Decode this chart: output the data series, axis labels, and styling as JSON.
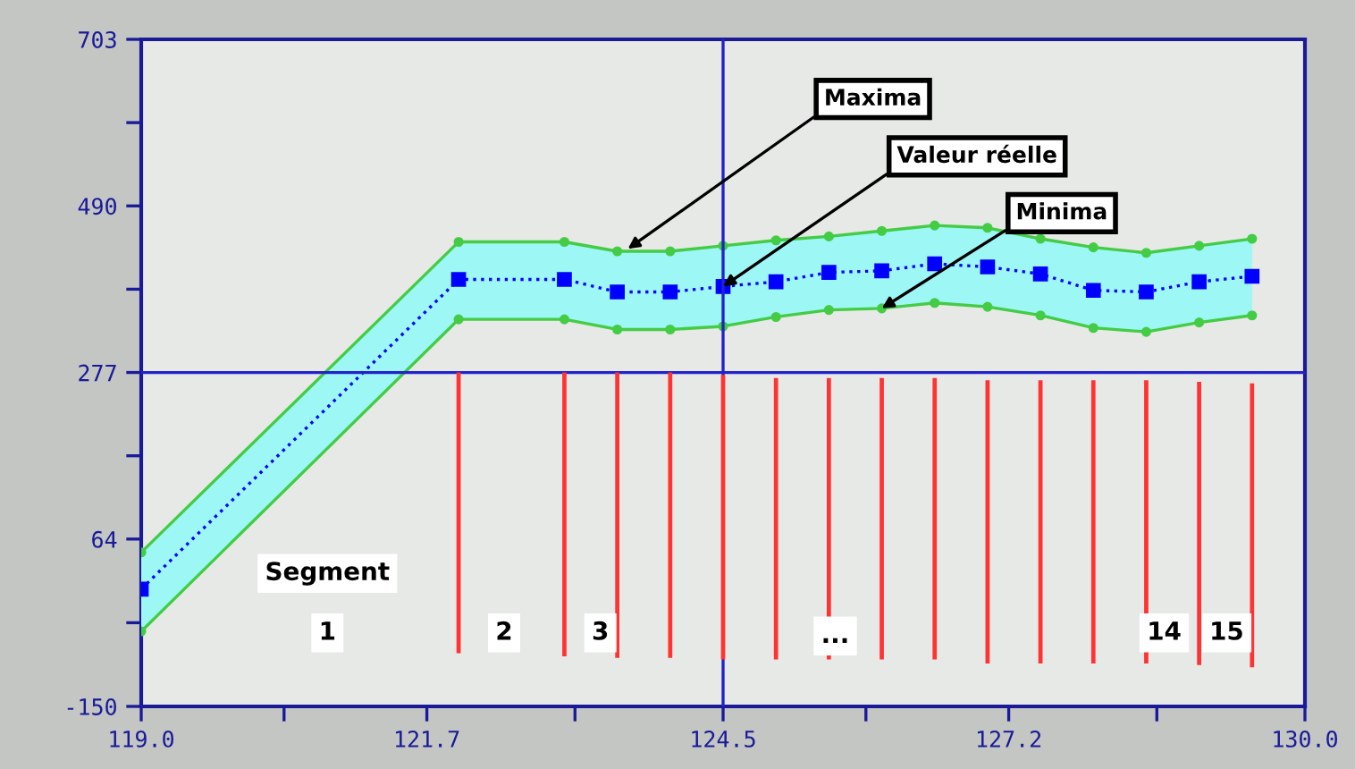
{
  "chart_data": {
    "type": "line",
    "x": [
      119.0,
      122.0,
      123.0,
      123.5,
      124.0,
      124.5,
      125.0,
      125.5,
      126.0,
      126.5,
      127.0,
      127.5,
      128.0,
      128.5,
      129.0,
      129.5
    ],
    "series": [
      {
        "type": "bar",
        "color": "#ff3333",
        "x": [
          122.0,
          123.0,
          123.5,
          124.0,
          124.5,
          125.0,
          125.5,
          126.0,
          126.5,
          127.0,
          127.5,
          128.0,
          128.5,
          129.0,
          129.5
        ],
        "values": [
          359,
          363,
          365,
          365,
          364,
          360,
          360,
          360,
          360,
          362,
          362,
          362,
          362,
          362,
          363
        ],
        "base": [
          -82,
          -86,
          -88,
          -88,
          -90,
          -90,
          -90,
          -90,
          -90,
          -95,
          -95,
          -95,
          -95,
          -97,
          -100
        ]
      },
      {
        "color": "#44cc44",
        "marker": "circle",
        "line_style": "solid",
        "values": [
          47,
          444,
          444,
          432,
          432,
          439,
          446,
          451,
          458,
          465,
          462,
          448,
          437,
          430,
          439,
          448
        ]
      },
      {
        "color": "#44cc44",
        "marker": "circle",
        "line_style": "solid",
        "values": [
          -54,
          345,
          345,
          332,
          332,
          336,
          348,
          357,
          359,
          366,
          361,
          350,
          334,
          329,
          341,
          350
        ]
      },
      {
        "color": "#0000ff",
        "marker": "square",
        "line_style": "dotted",
        "values": [
          0,
          396,
          396,
          380,
          380,
          387,
          393,
          405,
          407,
          416,
          412,
          403,
          382,
          380,
          393,
          400
        ],
        "lower": [
          -54,
          345,
          345,
          332,
          332,
          336,
          348,
          357,
          359,
          366,
          361,
          350,
          334,
          329,
          341,
          350
        ],
        "upper": [
          47,
          444,
          444,
          432,
          432,
          439,
          446,
          451,
          458,
          465,
          462,
          448,
          437,
          430,
          439,
          448
        ]
      }
    ],
    "xlim": [
      119.0,
      130.0
    ],
    "xticks": [
      {
        "value": 119.0,
        "label": "119.0"
      },
      {
        "value": 120.35,
        "label": null
      },
      {
        "value": 121.7,
        "label": "121.7"
      },
      {
        "value": 123.1,
        "label": null
      },
      {
        "value": 124.5,
        "label": "124.5"
      },
      {
        "value": 125.85,
        "label": null
      },
      {
        "value": 127.2,
        "label": "127.2"
      },
      {
        "value": 128.6,
        "label": null
      },
      {
        "value": 130.0,
        "label": "130.0"
      }
    ],
    "ylim": [
      -150,
      703
    ],
    "yticks": [
      -150,
      {
        "value": -43,
        "label": null
      },
      64,
      {
        "value": 170.5,
        "label": null
      },
      277,
      {
        "value": 383.5,
        "label": null
      },
      490,
      {
        "value": 596.5,
        "label": null
      },
      703
    ],
    "ref_lines": [
      {
        "axis": "y",
        "value": 277,
        "color": "#2222cc"
      },
      {
        "axis": "x",
        "value": 124.5,
        "color": "#2222cc"
      }
    ],
    "annotations": [
      {
        "text": "Maxima",
        "x": 123.6,
        "y": 435
      },
      {
        "text": "Valeur réelle",
        "x": 124.5,
        "y": 387
      },
      {
        "text": "Minima",
        "x": 126.0,
        "y": 359
      },
      "Segment",
      "1",
      "2",
      "3",
      "...",
      "14",
      "15"
    ],
    "grid": false,
    "legend": false
  }
}
